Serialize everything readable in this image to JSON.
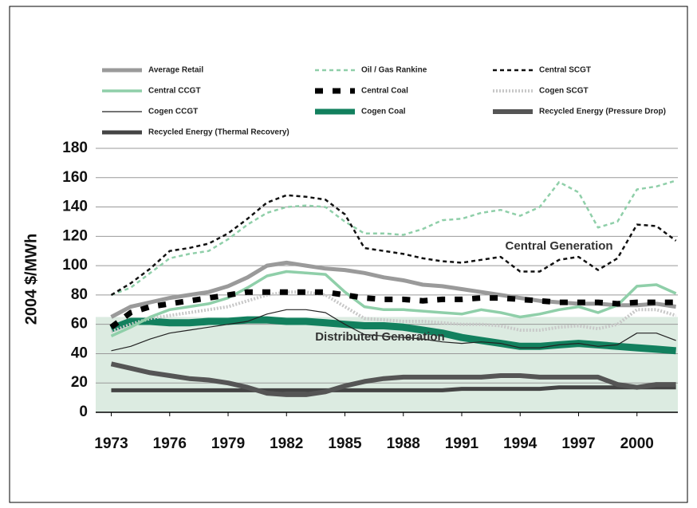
{
  "chart_data": {
    "type": "line",
    "y_label": "2004 $/MWh",
    "x": [
      1973,
      1974,
      1975,
      1976,
      1977,
      1978,
      1979,
      1980,
      1981,
      1982,
      1983,
      1984,
      1985,
      1986,
      1987,
      1988,
      1989,
      1990,
      1991,
      1992,
      1993,
      1994,
      1995,
      1996,
      1997,
      1998,
      1999,
      2000,
      2001,
      2002
    ],
    "xlim": [
      1972.2,
      2002.1
    ],
    "xticks": [
      1973,
      1976,
      1979,
      1982,
      1985,
      1988,
      1991,
      1994,
      1997,
      2000
    ],
    "ylim": [
      0,
      180
    ],
    "yticks": [
      0,
      20,
      40,
      60,
      80,
      100,
      120,
      140,
      160,
      180
    ],
    "grid": true,
    "bands": [
      {
        "from": 0,
        "to": 65,
        "color": "#dcebe1"
      }
    ],
    "annotations": [
      {
        "text": "Central Generation",
        "x": 1996,
        "y": 113
      },
      {
        "text": "Distributed Generation",
        "x": 1986.8,
        "y": 51
      }
    ],
    "series": [
      {
        "name": "Average Retail",
        "color": "#9a9a9a",
        "style": "solid",
        "line_width": 5,
        "values": [
          65,
          72,
          75,
          78,
          80,
          82,
          86,
          92,
          100,
          102,
          100,
          98,
          97,
          95,
          92,
          90,
          87,
          86,
          84,
          82,
          80,
          78,
          76,
          75,
          74,
          74,
          73,
          73,
          74,
          72
        ]
      },
      {
        "name": "Oil / Gas Rankine",
        "color": "#8fcfa9",
        "style": "dashed",
        "line_width": 2.5,
        "values": [
          80,
          85,
          95,
          105,
          108,
          110,
          118,
          128,
          136,
          140,
          141,
          140,
          130,
          122,
          122,
          121,
          125,
          131,
          132,
          136,
          138,
          134,
          140,
          157,
          150,
          126,
          130,
          152,
          154,
          158
        ]
      },
      {
        "name": "Central SCGT",
        "color": "#111111",
        "style": "dashed",
        "line_width": 2.5,
        "values": [
          80,
          88,
          98,
          110,
          112,
          115,
          122,
          132,
          143,
          148,
          147,
          145,
          135,
          112,
          110,
          108,
          105,
          103,
          102,
          104,
          106,
          96,
          96,
          104,
          106,
          97,
          105,
          128,
          127,
          117
        ]
      },
      {
        "name": "Central CCGT",
        "color": "#8fcfa9",
        "style": "solid",
        "line_width": 3.5,
        "values": [
          52,
          58,
          65,
          70,
          72,
          74,
          78,
          85,
          93,
          96,
          95,
          94,
          82,
          72,
          70,
          70,
          69,
          68,
          67,
          70,
          68,
          65,
          67,
          70,
          72,
          68,
          73,
          86,
          87,
          81
        ]
      },
      {
        "name": "Central Coal",
        "color": "#000000",
        "style": "bigdash",
        "line_width": 7,
        "values": [
          58,
          68,
          72,
          74,
          76,
          78,
          80,
          82,
          82,
          82,
          82,
          82,
          80,
          78,
          77,
          77,
          76,
          77,
          77,
          78,
          78,
          77,
          76,
          75,
          75,
          75,
          74,
          75,
          75,
          75
        ]
      },
      {
        "name": "Cogen SCGT",
        "color": "#c8c8c8",
        "style": "dotted",
        "line_width": 4,
        "values": [
          55,
          60,
          64,
          66,
          68,
          70,
          72,
          76,
          80,
          82,
          82,
          80,
          72,
          64,
          63,
          62,
          62,
          61,
          60,
          60,
          59,
          56,
          56,
          58,
          59,
          57,
          60,
          70,
          70,
          66
        ]
      },
      {
        "name": "Cogen CCGT",
        "color": "#222222",
        "style": "solid",
        "line_width": 1.2,
        "values": [
          42,
          45,
          50,
          54,
          56,
          58,
          60,
          62,
          67,
          70,
          70,
          68,
          60,
          53,
          52,
          51,
          50,
          48,
          47,
          48,
          47,
          44,
          44,
          46,
          47,
          45,
          46,
          54,
          54,
          49
        ]
      },
      {
        "name": "Cogen Coal",
        "color": "#12805e",
        "style": "solid",
        "line_width": 9,
        "values": [
          57,
          62,
          62,
          61,
          61,
          62,
          62,
          63,
          63,
          62,
          62,
          61,
          60,
          59,
          59,
          58,
          56,
          54,
          51,
          49,
          47,
          45,
          45,
          46,
          47,
          46,
          45,
          44,
          43,
          42
        ]
      },
      {
        "name": "Recycled Energy (Pressure Drop)",
        "color": "#555555",
        "style": "solid",
        "line_width": 6,
        "values": [
          33,
          30,
          27,
          25,
          23,
          22,
          20,
          17,
          13,
          12,
          12,
          14,
          18,
          21,
          23,
          24,
          24,
          24,
          24,
          24,
          25,
          25,
          24,
          24,
          24,
          24,
          19,
          17,
          19,
          19
        ]
      },
      {
        "name": "Recycled Energy (Thermal Recovery)",
        "color": "#444444",
        "style": "solid",
        "line_width": 5,
        "values": [
          15,
          15,
          15,
          15,
          15,
          15,
          15,
          15,
          15,
          15,
          15,
          15,
          15,
          15,
          15,
          15,
          15,
          15,
          16,
          16,
          16,
          16,
          16,
          17,
          17,
          17,
          17,
          17,
          17,
          17
        ]
      }
    ]
  }
}
